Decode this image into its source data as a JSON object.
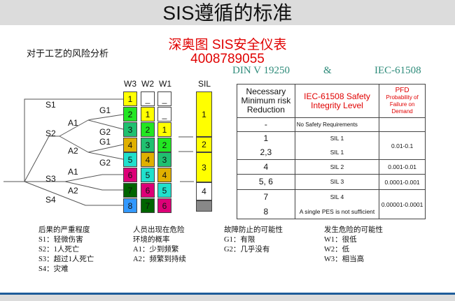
{
  "title": "SIS遵循的标准",
  "subtitle": "对于工艺的风险分析",
  "brand": {
    "line1": "深奥图 SIS安全仪表",
    "line2": "4008789055",
    "color": "#e00000"
  },
  "standards": {
    "left": "DIN V 19250",
    "amp": "&",
    "right": "IEC-61508"
  },
  "risk_graph": {
    "column_headers": [
      "W3",
      "W2",
      "W1",
      "SIL"
    ],
    "tree_labels": [
      "S1",
      "G1",
      "A1",
      "S2",
      "G2",
      "G1",
      "A2",
      "G2",
      "A1",
      "S3",
      "A2",
      "S4"
    ],
    "w3": [
      "1",
      "2",
      "3",
      "4",
      "5",
      "6",
      "7",
      "8"
    ],
    "w2": [
      "_",
      "1",
      "2",
      "3",
      "4",
      "5",
      "6",
      "7"
    ],
    "w1": [
      "_",
      "_",
      "1",
      "2",
      "3",
      "4",
      "5",
      "6"
    ],
    "sil": [
      "1",
      "2",
      "3",
      "4",
      ""
    ],
    "colors": {
      "_": "#ffffff",
      "1": "#ffff00",
      "2": "#22e622",
      "3": "#20c070",
      "4": "#e0b000",
      "5": "#20e0cc",
      "6": "#dd0077",
      "7": "#006400",
      "8": "#3399ff",
      "sil_yellow": "#ffff00",
      "sil_grey": "#888888"
    }
  },
  "table": {
    "headers": [
      "Necessary Minimum risk Reduction",
      "IEC-61508 Safety Integrity Level",
      "PFD",
      "Probability of Failure on Demand"
    ],
    "rows": [
      {
        "r": [
          "-"
        ],
        "sil": [
          "No Safety Requirements"
        ],
        "pfd": ""
      },
      {
        "r": [
          "1",
          "2,3"
        ],
        "sil": [
          "SIL 1",
          "SIL 1"
        ],
        "pfd": "0.01-0.1"
      },
      {
        "r": [
          "4"
        ],
        "sil": [
          "SIL 2"
        ],
        "pfd": "0.001-0.01"
      },
      {
        "r": [
          "5, 6"
        ],
        "sil": [
          "SIL 3"
        ],
        "pfd": "0.0001-0.001"
      },
      {
        "r": [
          "7",
          "8"
        ],
        "sil": [
          "SIL 4",
          "A single PES is not sufficient"
        ],
        "pfd": "0.00001-0.0001"
      }
    ]
  },
  "legend": [
    [
      "后果的严重程度",
      "S1：轻微伤害",
      "S2：1人死亡",
      "S3：超过1人死亡",
      "S4：灾难"
    ],
    [
      "人员出现在危险",
      "环境的概率",
      "A1：少到频繁",
      "A2：频繁到持续"
    ],
    [
      "故障防止的可能性",
      "G1：有限",
      "G2：几乎没有"
    ],
    [
      "发生危险的可能性",
      "W1：很低",
      "W2：低",
      "W3：相当高"
    ]
  ]
}
